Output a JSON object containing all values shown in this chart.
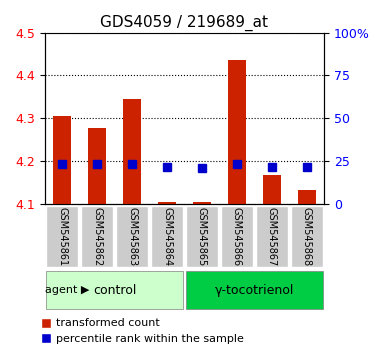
{
  "title": "GDS4059 / 219689_at",
  "samples": [
    "GSM545861",
    "GSM545862",
    "GSM545863",
    "GSM545864",
    "GSM545865",
    "GSM545866",
    "GSM545867",
    "GSM545868"
  ],
  "red_values": [
    4.305,
    4.278,
    4.345,
    4.105,
    4.105,
    4.435,
    4.168,
    4.132
  ],
  "blue_values": [
    4.193,
    4.193,
    4.193,
    4.187,
    4.185,
    4.193,
    4.187,
    4.187
  ],
  "bar_bottom": 4.1,
  "ylim": [
    4.1,
    4.5
  ],
  "yticks_left": [
    4.1,
    4.2,
    4.3,
    4.4,
    4.5
  ],
  "yticks_right": [
    0,
    25,
    50,
    75,
    100
  ],
  "right_ylim": [
    0,
    100
  ],
  "control_group": [
    "GSM545861",
    "GSM545862",
    "GSM545863",
    "GSM545864"
  ],
  "treatment_group": [
    "GSM545865",
    "GSM545866",
    "GSM545867",
    "GSM545868"
  ],
  "control_label": "control",
  "treatment_label": "γ-tocotrienol",
  "agent_label": "agent",
  "legend_red": "transformed count",
  "legend_blue": "percentile rank within the sample",
  "bar_color": "#cc2200",
  "blue_color": "#0000cc",
  "control_bg": "#ccffcc",
  "treatment_bg": "#00cc44",
  "bar_width": 0.5,
  "grid_color": "#000000",
  "xlabel_bg": "#cccccc"
}
